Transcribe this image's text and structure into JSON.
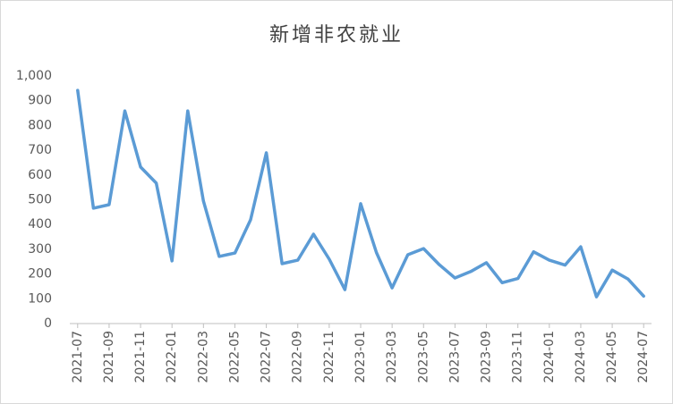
{
  "chart_data": {
    "type": "line",
    "title": "新增非农就业",
    "categories": [
      "2021-07",
      null,
      "2021-09",
      null,
      "2021-11",
      null,
      "2022-01",
      null,
      "2022-03",
      null,
      "2022-05",
      null,
      "2022-07",
      null,
      "2022-09",
      null,
      "2022-11",
      null,
      "2023-01",
      null,
      "2023-03",
      null,
      "2023-05",
      null,
      "2023-07",
      null,
      "2023-09",
      null,
      "2023-11",
      null,
      "2024-01",
      null,
      "2024-03",
      null,
      "2024-05",
      null,
      "2024-07"
    ],
    "series": [
      {
        "name": "新增非农就业",
        "color": "#5b9bd5",
        "values": [
          942,
          466,
          480,
          859,
          632,
          567,
          253,
          859,
          495,
          271,
          285,
          419,
          690,
          242,
          256,
          361,
          260,
          137,
          484,
          287,
          144,
          278,
          303,
          238,
          184,
          210,
          246,
          165,
          182,
          290,
          256,
          236,
          310,
          108,
          216,
          180,
          111
        ]
      }
    ],
    "ylim": [
      0,
      1000
    ],
    "yticks": [
      0,
      100,
      200,
      300,
      400,
      500,
      600,
      700,
      800,
      900,
      {
        "value": 1000,
        "label": "1,000"
      }
    ],
    "grid": false,
    "legend": false
  }
}
